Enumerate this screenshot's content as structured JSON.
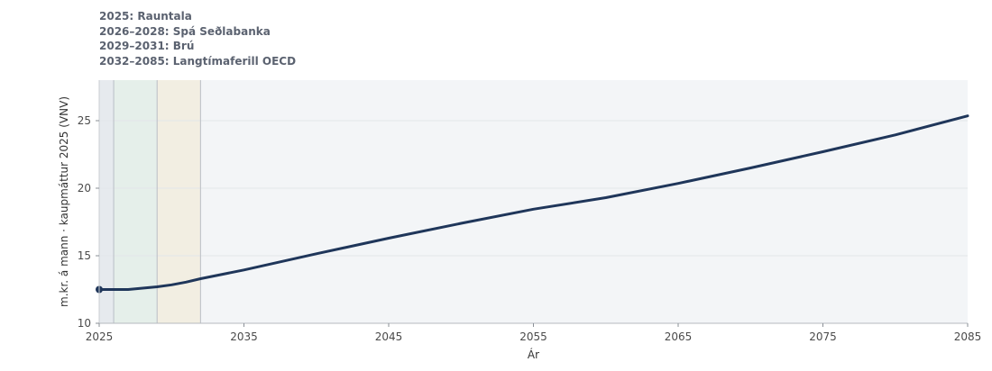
{
  "notes": [
    "2025: Rauntala",
    "2026–2028: Spá Seðlabanka",
    "2029–2031: Brú",
    "2032–2085: Langtímaferill OECD"
  ],
  "colors": {
    "plot_bg": "#f3f5f7",
    "band_actual": "#e6eaee",
    "band_forecast": "#e5efea",
    "band_bridge": "#f2eee2",
    "line": "#1f365a",
    "grid": "#e3e6ea",
    "divider": "#b9bec5"
  },
  "chart_data": {
    "type": "line",
    "xlabel": "Ár",
    "ylabel": "m.kr. á mann · kaupmáttur 2025 (VNV)",
    "xlim": [
      2025,
      2085
    ],
    "ylim": [
      10,
      28
    ],
    "xticks": [
      2025,
      2035,
      2045,
      2055,
      2065,
      2075,
      2085
    ],
    "yticks": [
      10,
      15,
      20,
      25
    ],
    "grid": true,
    "bands": [
      {
        "start": 2025,
        "end": 2026,
        "color": "#e6eaee"
      },
      {
        "start": 2026,
        "end": 2029,
        "color": "#e5efea"
      },
      {
        "start": 2029,
        "end": 2032,
        "color": "#f2eee2"
      },
      {
        "start": 2032,
        "end": 2085,
        "color": "#f3f5f7"
      }
    ],
    "series": [
      {
        "x": [
          2025,
          2026,
          2027,
          2028,
          2029,
          2030,
          2031,
          2032,
          2035,
          2040,
          2045,
          2050,
          2055,
          2060,
          2065,
          2070,
          2075,
          2080,
          2085
        ],
        "y": [
          12.5,
          12.5,
          12.5,
          12.6,
          12.7,
          12.85,
          13.05,
          13.3,
          13.95,
          15.15,
          16.3,
          17.4,
          18.45,
          19.3,
          20.35,
          21.5,
          22.7,
          23.95,
          25.35
        ],
        "color": "#1f365a",
        "start_marker": true
      }
    ]
  }
}
